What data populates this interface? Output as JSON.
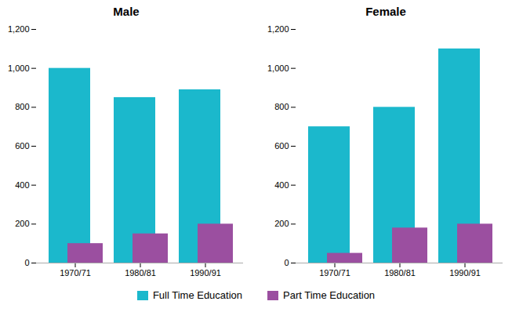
{
  "chart_data": [
    {
      "type": "bar",
      "title": "Male",
      "categories": [
        "1970/71",
        "1980/81",
        "1990/91"
      ],
      "series": [
        {
          "name": "Full Time Education",
          "color": "#1BB8CC",
          "values": [
            1000,
            850,
            890
          ]
        },
        {
          "name": "Part Time Education",
          "color": "#9B4FA0",
          "values": [
            100,
            150,
            200
          ]
        }
      ],
      "ylim": [
        0,
        1200
      ],
      "yticks": [
        0,
        200,
        400,
        600,
        800,
        1000,
        1200
      ],
      "grid": false,
      "legend": "bottom"
    },
    {
      "type": "bar",
      "title": "Female",
      "categories": [
        "1970/71",
        "1980/81",
        "1990/91"
      ],
      "series": [
        {
          "name": "Full Time Education",
          "color": "#1BB8CC",
          "values": [
            700,
            800,
            1100
          ]
        },
        {
          "name": "Part Time Education",
          "color": "#9B4FA0",
          "values": [
            50,
            180,
            200
          ]
        }
      ],
      "ylim": [
        0,
        1200
      ],
      "yticks": [
        0,
        200,
        400,
        600,
        800,
        1000,
        1200
      ],
      "grid": false,
      "legend": "bottom"
    }
  ]
}
